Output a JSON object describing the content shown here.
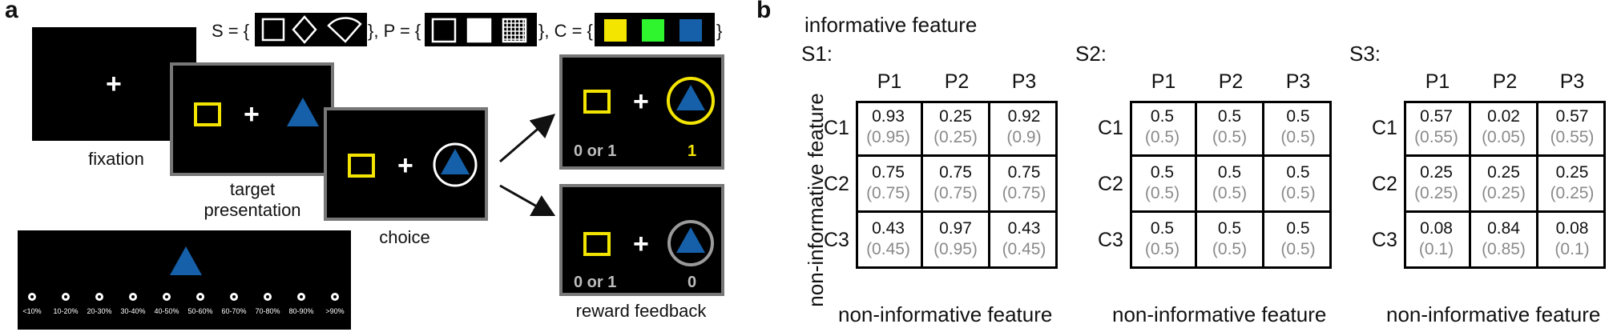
{
  "panel_a": {
    "letter": "a",
    "fixation_label": "fixation",
    "target_label": "target\npresentation",
    "choice_label": "choice",
    "reward_label": "reward feedback",
    "set_s_label": "S = {",
    "set_p_label": "}, P = {",
    "set_c_label": "}, C = {",
    "set_close": "}",
    "feedback_top_left": "0 or 1",
    "feedback_top_right": "1",
    "feedback_bottom_left": "0 or 1",
    "feedback_bottom_right": "0",
    "scale_labels": [
      "<10%",
      "10-20%",
      "20-30%",
      "30-40%",
      "40-50%",
      "50-60%",
      "60-70%",
      "70-80%",
      "80-90%",
      ">90%"
    ],
    "colors": {
      "yellow": "#f3e500",
      "green": "#2ef52e",
      "blue": "#1560a8"
    }
  },
  "panel_b": {
    "letter": "b",
    "informative_label": "informative feature",
    "non_informative_bottom": "non-informative feature",
    "non_informative_side": "non-informative feature",
    "col_headers": [
      "P1",
      "P2",
      "P3"
    ],
    "row_headers": [
      "C1",
      "C2",
      "C3"
    ],
    "tables": [
      {
        "name": "S1:",
        "values": [
          [
            "0.93",
            "0.25",
            "0.92"
          ],
          [
            "0.75",
            "0.75",
            "0.75"
          ],
          [
            "0.43",
            "0.97",
            "0.43"
          ]
        ],
        "paren": [
          [
            "(0.95)",
            "(0.25)",
            "(0.9)"
          ],
          [
            "(0.75)",
            "(0.75)",
            "(0.75)"
          ],
          [
            "(0.45)",
            "(0.95)",
            "(0.45)"
          ]
        ]
      },
      {
        "name": "S2:",
        "values": [
          [
            "0.5",
            "0.5",
            "0.5"
          ],
          [
            "0.5",
            "0.5",
            "0.5"
          ],
          [
            "0.5",
            "0.5",
            "0.5"
          ]
        ],
        "paren": [
          [
            "(0.5)",
            "(0.5)",
            "(0.5)"
          ],
          [
            "(0.5)",
            "(0.5)",
            "(0.5)"
          ],
          [
            "(0.5)",
            "(0.5)",
            "(0.5)"
          ]
        ]
      },
      {
        "name": "S3:",
        "values": [
          [
            "0.57",
            "0.02",
            "0.57"
          ],
          [
            "0.25",
            "0.25",
            "0.25"
          ],
          [
            "0.08",
            "0.84",
            "0.08"
          ]
        ],
        "paren": [
          [
            "(0.55)",
            "(0.05)",
            "(0.55)"
          ],
          [
            "(0.25)",
            "(0.25)",
            "(0.25)"
          ],
          [
            "(0.1)",
            "(0.85)",
            "(0.1)"
          ]
        ]
      }
    ]
  }
}
